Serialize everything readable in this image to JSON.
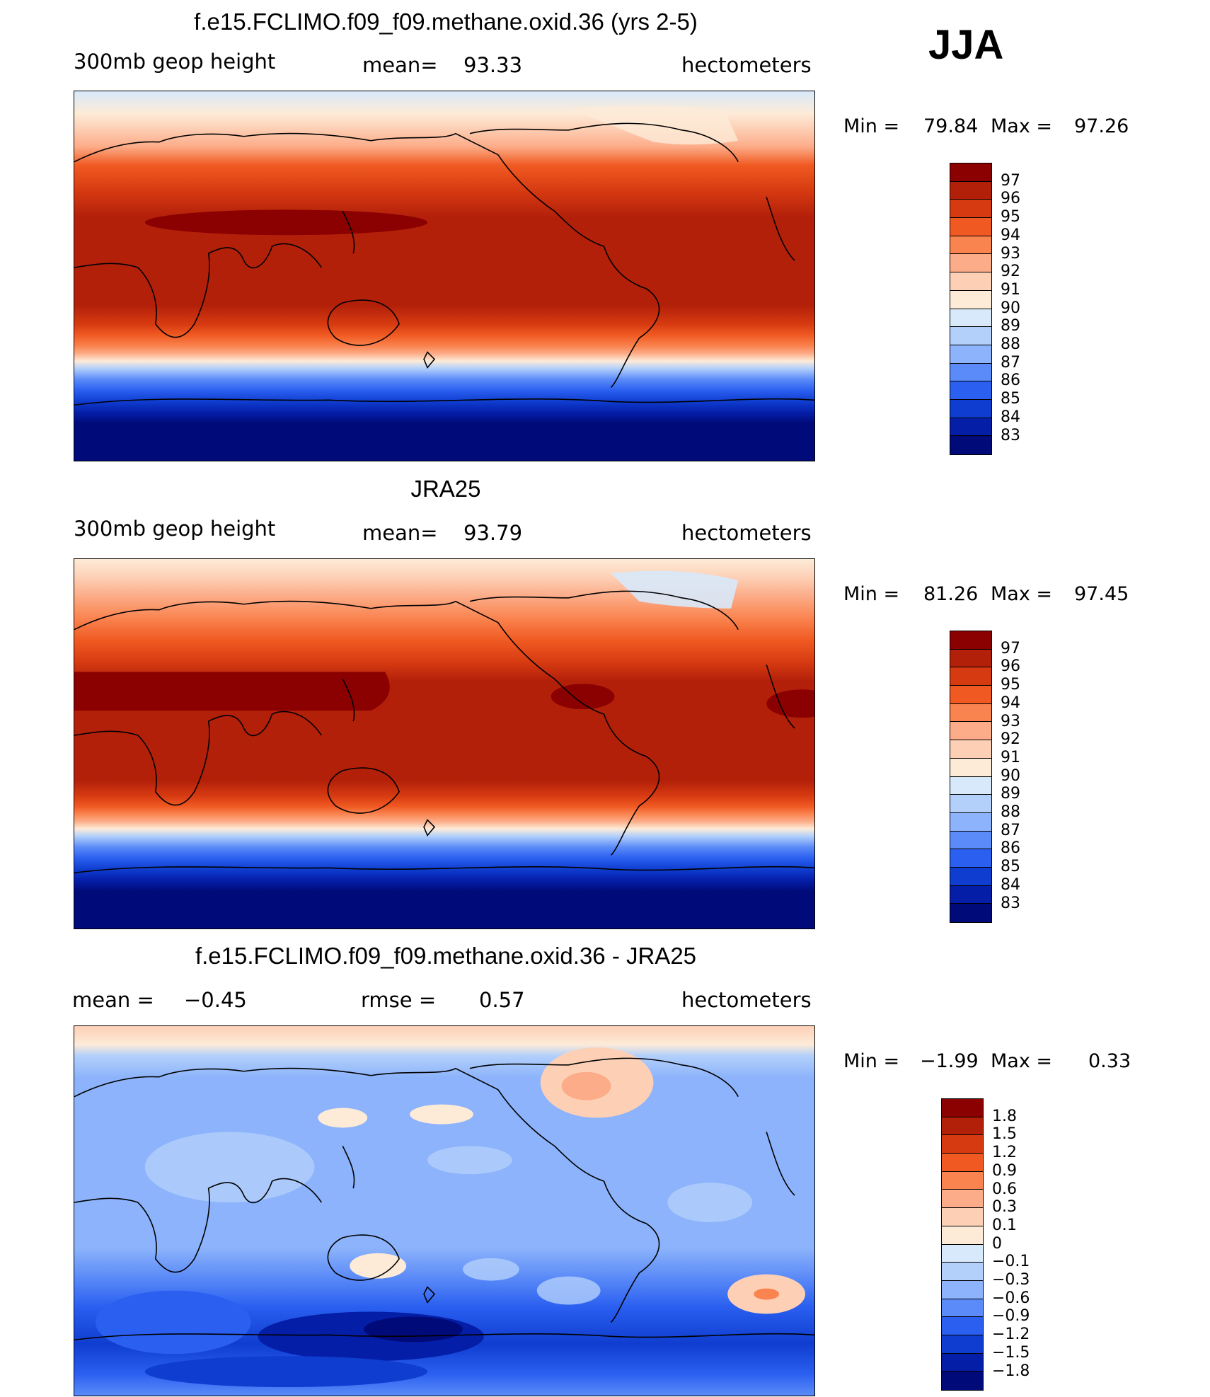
{
  "season": "JJA",
  "units": "hectometers",
  "panels": [
    {
      "title": "f.e15.FCLIMO.f09_f09.methane.oxid.36 (yrs 2-5)",
      "variable": "300mb geop height",
      "mean_label": "mean=",
      "mean_value": "93.33",
      "units": "hectometers",
      "min_label": "Min =",
      "min_value": "79.84",
      "max_label": "Max =",
      "max_value": "97.26"
    },
    {
      "title": "JRA25",
      "variable": "300mb geop height",
      "mean_label": "mean=",
      "mean_value": "93.79",
      "units": "hectometers",
      "min_label": "Min =",
      "min_value": "81.26",
      "max_label": "Max =",
      "max_value": "97.45"
    },
    {
      "title": "f.e15.FCLIMO.f09_f09.methane.oxid.36 - JRA25",
      "mean_label": "mean =",
      "mean_value": "−0.45",
      "rmse_label": "rmse =",
      "rmse_value": "0.57",
      "units": "hectometers",
      "min_label": "Min =",
      "min_value": "−1.99",
      "max_label": "Max =",
      "max_value": "0.33"
    }
  ],
  "colorbar_abs": {
    "labels": [
      "97",
      "96",
      "95",
      "94",
      "93",
      "92",
      "91",
      "90",
      "89",
      "88",
      "87",
      "86",
      "85",
      "84",
      "83"
    ],
    "colors": [
      "#8b0000",
      "#b3200a",
      "#d63a11",
      "#f05a22",
      "#fa8450",
      "#fcac88",
      "#fdd0b6",
      "#fdebd8",
      "#d8e9fb",
      "#b3d0fb",
      "#8cb3fb",
      "#5b8bf8",
      "#2a5ff0",
      "#0f3dd0",
      "#051ea8",
      "#000a78"
    ]
  },
  "colorbar_diff": {
    "labels": [
      "1.8",
      "1.5",
      "1.2",
      "0.9",
      "0.6",
      "0.3",
      "0.1",
      "0",
      "−0.1",
      "−0.3",
      "−0.6",
      "−0.9",
      "−1.2",
      "−1.5",
      "−1.8"
    ],
    "colors": [
      "#8b0000",
      "#b3200a",
      "#d63a11",
      "#f05a22",
      "#fa8450",
      "#fcac88",
      "#fdd0b6",
      "#fdebd8",
      "#d8e9fb",
      "#b3d0fb",
      "#8cb3fb",
      "#5b8bf8",
      "#2a5ff0",
      "#0f3dd0",
      "#051ea8",
      "#000a78"
    ]
  }
}
